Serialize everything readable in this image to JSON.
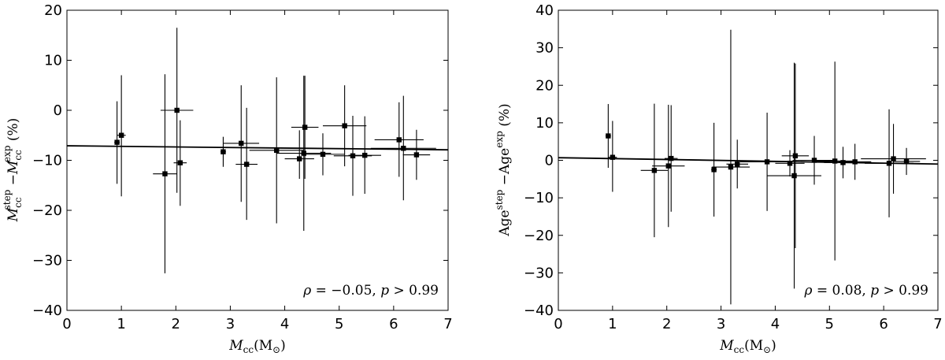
{
  "chart_data": [
    {
      "type": "scatter",
      "xlabel": "M_cc(M_⊙)",
      "ylabel": "M_cc^step − M_cc^exp (%)",
      "xlim": [
        0,
        7
      ],
      "ylim": [
        -40,
        20
      ],
      "xticks": [
        "0",
        "1",
        "2",
        "3",
        "4",
        "5",
        "6",
        "7"
      ],
      "yticks": [
        "−40",
        "−30",
        "−20",
        "−10",
        "0",
        "10",
        "20"
      ],
      "annotation": "ρ = −0.05, p > 0.99",
      "grid": false,
      "fit_line": [
        [
          0,
          -7.1
        ],
        [
          7,
          -7.9
        ]
      ],
      "points": [
        {
          "x": 0.92,
          "y": -6.4,
          "xerr": 0.05,
          "yerr": [
            8.3,
            8.2
          ]
        },
        {
          "x": 1.0,
          "y": -5.0,
          "xerr": 0.08,
          "yerr": [
            12.2,
            12.0
          ]
        },
        {
          "x": 1.8,
          "y": -12.7,
          "xerr": 0.22,
          "yerr": [
            19.9,
            19.9
          ]
        },
        {
          "x": 2.02,
          "y": 0.0,
          "xerr": 0.3,
          "yerr": [
            16.5,
            16.5
          ]
        },
        {
          "x": 2.08,
          "y": -10.5,
          "xerr": 0.12,
          "yerr": [
            8.6,
            8.5
          ]
        },
        {
          "x": 2.87,
          "y": -8.3,
          "xerr": 0.05,
          "yerr": [
            3.0,
            3.0
          ]
        },
        {
          "x": 3.2,
          "y": -6.6,
          "xerr": 0.33,
          "yerr": [
            11.7,
            11.6
          ]
        },
        {
          "x": 3.3,
          "y": -10.8,
          "xerr": 0.2,
          "yerr": [
            11.1,
            11.3
          ]
        },
        {
          "x": 3.85,
          "y": -8.0,
          "xerr": 0.5,
          "yerr": [
            14.6,
            14.6
          ]
        },
        {
          "x": 4.27,
          "y": -9.7,
          "xerr": 0.27,
          "yerr": [
            4.0,
            5.7
          ]
        },
        {
          "x": 4.37,
          "y": -3.4,
          "xerr": 0.25,
          "yerr": [
            10.3,
            10.3
          ]
        },
        {
          "x": 4.35,
          "y": -8.6,
          "xerr": 0.5,
          "yerr": [
            15.5,
            15.5
          ]
        },
        {
          "x": 4.7,
          "y": -8.8,
          "xerr": 0.4,
          "yerr": [
            4.2,
            4.2
          ]
        },
        {
          "x": 5.1,
          "y": -3.1,
          "xerr": 0.4,
          "yerr": [
            8.1,
            8.1
          ]
        },
        {
          "x": 5.25,
          "y": -9.1,
          "xerr": 0.35,
          "yerr": [
            8.0,
            8.0
          ]
        },
        {
          "x": 5.47,
          "y": -9.0,
          "xerr": 0.3,
          "yerr": [
            7.7,
            7.8
          ]
        },
        {
          "x": 6.1,
          "y": -5.9,
          "xerr": 0.45,
          "yerr": [
            7.4,
            7.5
          ]
        },
        {
          "x": 6.18,
          "y": -7.6,
          "xerr": 0.6,
          "yerr": [
            10.4,
            10.5
          ]
        },
        {
          "x": 6.42,
          "y": -8.9,
          "xerr": 0.25,
          "yerr": [
            5.0,
            5.0
          ]
        }
      ]
    },
    {
      "type": "scatter",
      "xlabel": "M_cc(M_⊙)",
      "ylabel": "Age^step − Age^exp (%)",
      "xlim": [
        0,
        7
      ],
      "ylim": [
        -40,
        40
      ],
      "xticks": [
        "0",
        "1",
        "2",
        "3",
        "4",
        "5",
        "6",
        "7"
      ],
      "yticks": [
        "−40",
        "−30",
        "−20",
        "−10",
        "0",
        "10",
        "20",
        "30",
        "40"
      ],
      "annotation": "ρ = 0.08, p > 0.99",
      "grid": false,
      "fit_line": [
        [
          0,
          0.7
        ],
        [
          7,
          -1.0
        ]
      ],
      "points": [
        {
          "x": 0.92,
          "y": 6.5,
          "xerr": 0.05,
          "yerr": [
            8.5,
            8.5
          ]
        },
        {
          "x": 1.0,
          "y": 0.8,
          "xerr": 0.08,
          "yerr": [
            9.2,
            9.7
          ]
        },
        {
          "x": 1.77,
          "y": -2.7,
          "xerr": 0.25,
          "yerr": [
            17.8,
            17.8
          ]
        },
        {
          "x": 2.03,
          "y": -1.5,
          "xerr": 0.3,
          "yerr": [
            16.3,
            16.3
          ]
        },
        {
          "x": 2.08,
          "y": 0.5,
          "xerr": 0.12,
          "yerr": [
            14.2,
            14.2
          ]
        },
        {
          "x": 2.87,
          "y": -2.5,
          "xerr": 0.05,
          "yerr": [
            12.5,
            12.5
          ]
        },
        {
          "x": 3.18,
          "y": -1.8,
          "xerr": 0.35,
          "yerr": [
            36.6,
            36.6
          ]
        },
        {
          "x": 3.3,
          "y": -1.0,
          "xerr": 0.2,
          "yerr": [
            6.5,
            6.5
          ]
        },
        {
          "x": 3.85,
          "y": -0.4,
          "xerr": 0.5,
          "yerr": [
            13.1,
            13.1
          ]
        },
        {
          "x": 4.27,
          "y": -0.8,
          "xerr": 0.27,
          "yerr": [
            3.5,
            3.5
          ]
        },
        {
          "x": 4.37,
          "y": 1.2,
          "xerr": 0.25,
          "yerr": [
            24.6,
            24.6
          ]
        },
        {
          "x": 4.35,
          "y": -4.1,
          "xerr": 0.5,
          "yerr": [
            30.1,
            30.1
          ]
        },
        {
          "x": 4.72,
          "y": 0.0,
          "xerr": 0.4,
          "yerr": [
            6.5,
            6.5
          ]
        },
        {
          "x": 5.1,
          "y": -0.2,
          "xerr": 0.4,
          "yerr": [
            26.5,
            26.5
          ]
        },
        {
          "x": 5.25,
          "y": -0.6,
          "xerr": 0.35,
          "yerr": [
            4.2,
            4.2
          ]
        },
        {
          "x": 5.47,
          "y": -0.4,
          "xerr": 0.3,
          "yerr": [
            4.8,
            4.8
          ]
        },
        {
          "x": 6.1,
          "y": -0.8,
          "xerr": 0.45,
          "yerr": [
            14.4,
            14.4
          ]
        },
        {
          "x": 6.18,
          "y": 0.4,
          "xerr": 0.6,
          "yerr": [
            9.3,
            9.3
          ]
        },
        {
          "x": 6.42,
          "y": -0.3,
          "xerr": 0.25,
          "yerr": [
            3.6,
            3.6
          ]
        }
      ]
    }
  ]
}
